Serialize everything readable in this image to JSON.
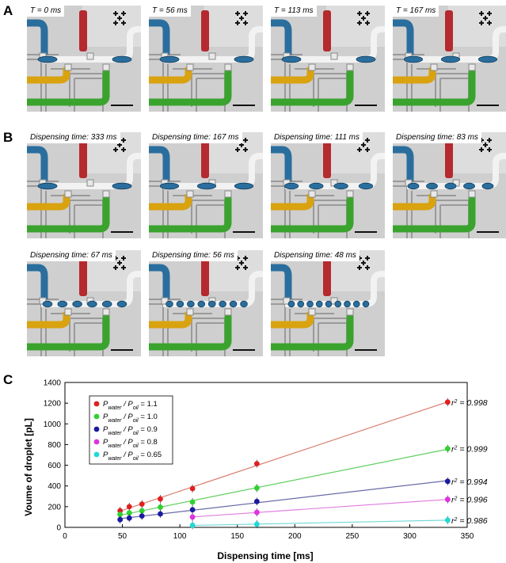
{
  "panels": {
    "a": {
      "letter": "A",
      "labels": [
        "T = 0 ms",
        "T = 56 ms",
        "T = 113 ms",
        "T = 167 ms"
      ],
      "droplets": [
        2,
        2,
        2,
        3
      ]
    },
    "b": {
      "letter": "B",
      "labels": [
        "Dispensing time: 333 ms",
        "Dispensing time: 167 ms",
        "Dispensing time: 111 ms",
        "Dispensing time: 83 ms",
        "Dispensing time: 67 ms",
        "Dispensing time: 56 ms",
        "Dispensing time: 48 ms"
      ],
      "droplets": [
        2,
        3,
        4,
        5,
        6,
        8,
        9
      ]
    },
    "c": {
      "letter": "C"
    }
  },
  "colors": {
    "blue_fluid": "#2a6e9e",
    "yellow_fluid": "#d9a20f",
    "green_fluid": "#3aa32e",
    "red_valve": "#b52a2e",
    "chip_bg": "#cfcfcf"
  },
  "chart_data": {
    "type": "scatter",
    "xlabel": "Dispensing time [ms]",
    "ylabel": "Voume of droplet [pL]",
    "xlim": [
      0,
      350
    ],
    "ylim": [
      0,
      1400
    ],
    "xticks": [
      0,
      50,
      100,
      150,
      200,
      250,
      300,
      350
    ],
    "yticks": [
      0,
      200,
      400,
      600,
      800,
      1000,
      1200,
      1400
    ],
    "grid": false,
    "legend_position": "top-left",
    "series": [
      {
        "name": "P_water / P_oil = 1.1",
        "legend_prefix": "P",
        "legend_sub1": "water",
        "legend_mid": " / P",
        "legend_sub2": "oil",
        "legend_value": " = 1.1",
        "color": "#e02020",
        "line_color": "#d98070",
        "x": [
          48,
          56,
          67,
          83,
          111,
          167,
          333
        ],
        "y": [
          160,
          200,
          225,
          275,
          375,
          615,
          1210
        ],
        "r2": "0.998"
      },
      {
        "name": "P_water / P_oil = 1.0",
        "legend_prefix": "P",
        "legend_sub1": "water",
        "legend_mid": " / P",
        "legend_sub2": "oil",
        "legend_value": " = 1.0",
        "color": "#30d030",
        "line_color": "#60d060",
        "x": [
          48,
          56,
          67,
          83,
          111,
          167,
          333
        ],
        "y": [
          125,
          140,
          160,
          195,
          245,
          380,
          760
        ],
        "r2": "0.999"
      },
      {
        "name": "P_water / P_oil = 0.9",
        "legend_prefix": "P",
        "legend_sub1": "water",
        "legend_mid": " / P",
        "legend_sub2": "oil",
        "legend_value": " = 0.9",
        "color": "#1a1aa0",
        "line_color": "#6a6aa8",
        "x": [
          48,
          56,
          67,
          83,
          111,
          167,
          333
        ],
        "y": [
          75,
          90,
          110,
          130,
          170,
          250,
          445
        ],
        "r2": "0.994"
      },
      {
        "name": "P_water / P_oil = 0.8",
        "legend_prefix": "P",
        "legend_sub1": "water",
        "legend_mid": " / P",
        "legend_sub2": "oil",
        "legend_value": " = 0.8",
        "color": "#e030e0",
        "line_color": "#e080e0",
        "x": [
          111,
          167,
          333
        ],
        "y": [
          100,
          145,
          270
        ],
        "r2": "0.996"
      },
      {
        "name": "P_water / P_oil = 0.65",
        "legend_prefix": "P",
        "legend_sub1": "water",
        "legend_mid": " / P",
        "legend_sub2": "oil",
        "legend_value": " = 0.65",
        "color": "#20d8d8",
        "line_color": "#70d8d8",
        "x": [
          111,
          167,
          333
        ],
        "y": [
          20,
          30,
          70
        ],
        "r2": "0.986"
      }
    ]
  }
}
